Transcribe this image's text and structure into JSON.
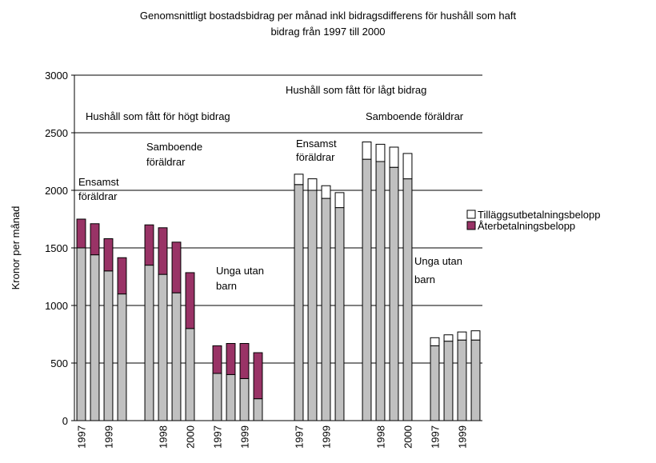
{
  "chart_data": {
    "type": "bar",
    "stacked": true,
    "title": [
      "Genomsnittligt bostadsbidrag per månad inkl bidragsdifferens för hushåll som haft",
      "bidrag från 1997 till 2000"
    ],
    "y_label": "Kronor per månad",
    "annotations": [
      "Hushåll som fått för högt bidrag",
      "Ensamst",
      "föräldrar",
      "Samboende",
      "föräldrar",
      "Unga utan",
      "barn",
      "Hushåll som fått för lågt bidrag",
      "Ensamst",
      "föräldrar",
      "Samboende föräldrar",
      "Unga utan",
      "barn"
    ],
    "categories": [
      "1997",
      null,
      "1999",
      null,
      null,
      null,
      "1998",
      null,
      "2000",
      null,
      "1997",
      null,
      "1999",
      null,
      null,
      null,
      "1997",
      null,
      "1999",
      null,
      null,
      null,
      "1998",
      null,
      "2000",
      null,
      "1997",
      null,
      "1999",
      null
    ],
    "series": [
      {
        "color": "#c0c0c0",
        "values": [
          1500,
          1440,
          1300,
          1100,
          null,
          1350,
          1270,
          1110,
          800,
          null,
          410,
          400,
          365,
          190,
          null,
          null,
          2050,
          2000,
          1930,
          1850,
          null,
          2270,
          2250,
          2200,
          2100,
          null,
          650,
          690,
          700,
          700
        ]
      },
      {
        "name": "Återbetalningsbelopp",
        "color": "#993366",
        "values": [
          250,
          270,
          280,
          315,
          null,
          350,
          405,
          440,
          485,
          null,
          240,
          270,
          305,
          400,
          null,
          null,
          null,
          null,
          null,
          null,
          null,
          null,
          null,
          null,
          null,
          null,
          null,
          null,
          null,
          null
        ]
      },
      {
        "name": "Tilläggsutbetalningsbelopp",
        "color": "#ffffff",
        "values": [
          null,
          null,
          null,
          null,
          null,
          null,
          null,
          null,
          null,
          null,
          null,
          null,
          null,
          null,
          null,
          null,
          90,
          100,
          110,
          130,
          null,
          150,
          150,
          175,
          220,
          null,
          70,
          55,
          70,
          80
        ]
      }
    ],
    "ylim": [
      0,
      3000
    ],
    "yticks": [
      0,
      500,
      1000,
      1500,
      2000,
      2500,
      3000
    ],
    "grid": true,
    "legend": "right"
  }
}
